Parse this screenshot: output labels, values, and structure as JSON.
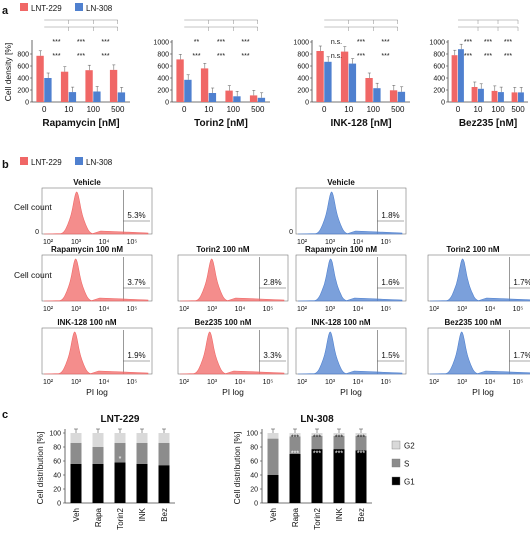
{
  "panel_labels": {
    "a": "a",
    "b": "b",
    "c": "c"
  },
  "legend": {
    "series1": "LNT-229",
    "series2": "LN-308",
    "colors": {
      "series1": "#f06766",
      "series2": "#4f80cf"
    }
  },
  "chart_data": [
    {
      "panel": "a",
      "type": "bar",
      "title": "Rapamycin [nM]",
      "ylabel": "Cell density [%]",
      "categories": [
        "0",
        "10",
        "100",
        "500"
      ],
      "ylim": [
        0,
        1000
      ],
      "yticks": [
        0,
        200,
        400,
        600,
        800
      ],
      "series": [
        {
          "name": "LNT-229",
          "values": [
            770,
            505,
            530,
            535
          ]
        },
        {
          "name": "LN-308",
          "values": [
            400,
            165,
            175,
            160
          ]
        }
      ],
      "annotations": [
        "***",
        "***",
        "***",
        "***",
        "***",
        "***"
      ]
    },
    {
      "panel": "a",
      "type": "bar",
      "title": "Torin2 [nM]",
      "ylabel": "",
      "categories": [
        "0",
        "10",
        "100",
        "500"
      ],
      "ylim": [
        0,
        1000
      ],
      "yticks": [
        0,
        200,
        400,
        600,
        800,
        1000
      ],
      "series": [
        {
          "name": "LNT-229",
          "values": [
            710,
            560,
            190,
            110
          ]
        },
        {
          "name": "LN-308",
          "values": [
            370,
            150,
            95,
            70
          ]
        }
      ],
      "annotations": [
        "**",
        "***",
        "***",
        "***",
        "***",
        "***"
      ]
    },
    {
      "panel": "a",
      "type": "bar",
      "title": "INK-128 [nM]",
      "ylabel": "",
      "categories": [
        "0",
        "10",
        "100",
        "500"
      ],
      "ylim": [
        0,
        1000
      ],
      "yticks": [
        0,
        200,
        400,
        600,
        800,
        1000
      ],
      "series": [
        {
          "name": "LNT-229",
          "values": [
            850,
            840,
            400,
            195
          ]
        },
        {
          "name": "LN-308",
          "values": [
            670,
            640,
            230,
            170
          ]
        }
      ],
      "annotations": [
        "n.s.",
        "***",
        "***",
        "n.s.",
        "***",
        "***"
      ]
    },
    {
      "panel": "a",
      "type": "bar",
      "title": "Bez235 [nM]",
      "ylabel": "",
      "categories": [
        "0",
        "10",
        "100",
        "500"
      ],
      "ylim": [
        0,
        1000
      ],
      "yticks": [
        0,
        200,
        400,
        600,
        800,
        1000
      ],
      "series": [
        {
          "name": "LNT-229",
          "values": [
            780,
            250,
            185,
            160
          ]
        },
        {
          "name": "LN-308",
          "values": [
            880,
            220,
            165,
            160
          ]
        }
      ],
      "annotations": [
        "***",
        "***",
        "***",
        "***",
        "***",
        "***"
      ]
    },
    {
      "panel": "c",
      "type": "bar",
      "stacked": true,
      "title": "LNT-229",
      "ylabel": "Cell distribution [%]",
      "categories": [
        "Veh",
        "Rapa",
        "Torin2",
        "INK",
        "Bez"
      ],
      "ylim": [
        0,
        100
      ],
      "yticks": [
        0,
        20,
        40,
        60,
        80,
        100
      ],
      "series": [
        {
          "name": "G1",
          "values": [
            56,
            56,
            58,
            56,
            54
          ]
        },
        {
          "name": "S",
          "values": [
            30,
            24,
            28,
            30,
            32
          ]
        },
        {
          "name": "G2",
          "values": [
            14,
            20,
            14,
            14,
            14
          ]
        }
      ],
      "annotations": [
        "*"
      ]
    },
    {
      "panel": "c",
      "type": "bar",
      "stacked": true,
      "title": "LN-308",
      "ylabel": "Cell distribution [%]",
      "categories": [
        "Veh",
        "Rapa",
        "Torin2",
        "INK",
        "Bez"
      ],
      "ylim": [
        0,
        100
      ],
      "yticks": [
        0,
        20,
        40,
        60,
        80,
        100
      ],
      "series": [
        {
          "name": "G1",
          "values": [
            40,
            70,
            77,
            77,
            75
          ]
        },
        {
          "name": "S",
          "values": [
            52,
            25,
            19,
            19,
            21
          ]
        },
        {
          "name": "G2",
          "values": [
            8,
            5,
            4,
            4,
            4
          ]
        }
      ],
      "annotations": [
        "***",
        "***",
        "***",
        "***"
      ]
    }
  ],
  "stack_legend": [
    {
      "name": "G2",
      "color": "#d9d9d9"
    },
    {
      "name": "S",
      "color": "#8c8c8c"
    },
    {
      "name": "G1",
      "color": "#000000"
    }
  ],
  "histograms": {
    "ylabel": "Cell count",
    "xlabel": "PI log",
    "xticks": [
      "10²",
      "10³",
      "10⁴",
      "10⁵"
    ],
    "items": [
      {
        "title": "Vehicle",
        "pct": "5.3%",
        "series": "LNT-229"
      },
      {
        "title": "Rapamycin 100 nM",
        "pct": "3.7%",
        "series": "LNT-229"
      },
      {
        "title": "Torin2 100 nM",
        "pct": "2.8%",
        "series": "LNT-229"
      },
      {
        "title": "INK-128 100 nM",
        "pct": "1.9%",
        "series": "LNT-229"
      },
      {
        "title": "Bez235 100 nM",
        "pct": "3.3%",
        "series": "LNT-229"
      },
      {
        "title": "Vehicle",
        "pct": "1.8%",
        "series": "LN-308"
      },
      {
        "title": "Rapamycin 100 nM",
        "pct": "1.6%",
        "series": "LN-308"
      },
      {
        "title": "Torin2 100 nM",
        "pct": "1.7%",
        "series": "LN-308"
      },
      {
        "title": "INK-128 100 nM",
        "pct": "1.5%",
        "series": "LN-308"
      },
      {
        "title": "Bez235 100 nM",
        "pct": "1.7%",
        "series": "LN-308"
      }
    ]
  }
}
